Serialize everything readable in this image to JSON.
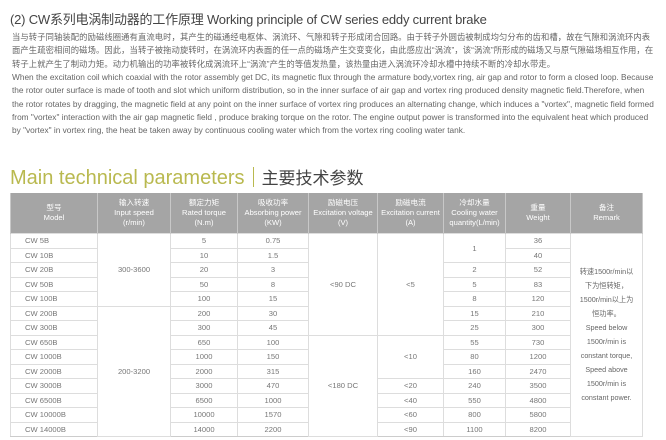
{
  "heading": "(2) CW系列电涡制动器的工作原理  Working principle of CW series eddy current brake",
  "principle_cn": "当与转子同轴装配的励磁线圈通有直流电时，其产生的磁通经电枢体、涡流环、气隙和转子形成闭合回路。由于转子外圆齿被制成均匀分布的齿和槽，故在气隙和涡流环内表面产生疏密相间的磁场。因此，当转子被拖动旋转时，在涡流环内表面的任一点的磁场产生交变变化，由此感应出“涡流”，该“涡流”所形成的磁场又与原气隙磁场相互作用，在转子上就产生了制动力矩。动力机输出的功率被转化成涡流环上“涡流”产生的等值发热量，该热量由进入涡流环冷却水槽中持续不断的冷却水带走。",
  "principle_en": "When the excitation coil which coaxial with the rotor assembly get DC, its magnetic flux through the armature body,vortex ring, air gap and rotor to form a closed loop. Because the rotor outer surface is made of tooth and slot which uniform distribution, so in the inner surface of air gap and vortex ring produced density magnetic field.Therefore, when the rotor rotates by dragging, the magnetic field at any point on the inner surface of vortex ring produces an alternating change, which induces a \"vortex\", magnetic field  formed from \"vortex\" interaction with the air gap magnetic field , produce braking torque on the rotor. The engine output power is transformed into the equivalent heat which produced  by \"vortex\" in  vortex ring, the heat be taken away by continuous cooling water which from  the vortex ring cooling water tank.",
  "section": {
    "title_en": "Main technical parameters",
    "title_cn": "主要技术参数",
    "accent": "#b9b94f"
  },
  "table": {
    "header_bg": "#a5a5a5",
    "headers": [
      {
        "cn": "型号",
        "en": "Model",
        "unit": ""
      },
      {
        "cn": "输入转速",
        "en": "Input speed",
        "unit": "(r/min)"
      },
      {
        "cn": "额定力矩",
        "en": "Rated torque",
        "unit": "(N.m)"
      },
      {
        "cn": "吸收功率",
        "en": "Absorbing power",
        "unit": "(KW)"
      },
      {
        "cn": "励磁电压",
        "en": "Excitation voltage",
        "unit": "(V)"
      },
      {
        "cn": "励磁电流",
        "en": "Excitation current",
        "unit": "(A)"
      },
      {
        "cn": "冷却水量",
        "en": "Cooling water",
        "unit": "quantity(L/min)"
      },
      {
        "cn": "重量",
        "en": "Weight",
        "unit": ""
      },
      {
        "cn": "备注",
        "en": "Remark",
        "unit": ""
      }
    ],
    "models": [
      "CW 5B",
      "CW 10B",
      "CW 20B",
      "CW 50B",
      "CW 100B",
      "CW 200B",
      "CW 300B",
      "CW 650B",
      "CW 1000B",
      "CW 2000B",
      "CW 3000B",
      "CW 6500B",
      "CW 10000B",
      "CW 14000B"
    ],
    "torque": [
      "5",
      "10",
      "20",
      "50",
      "100",
      "200",
      "300",
      "650",
      "1000",
      "2000",
      "3000",
      "6500",
      "10000",
      "14000"
    ],
    "power": [
      "0.75",
      "1.5",
      "3",
      "8",
      "15",
      "30",
      "45",
      "100",
      "150",
      "315",
      "470",
      "1000",
      "1570",
      "2200"
    ],
    "weight": [
      "36",
      "40",
      "52",
      "83",
      "120",
      "210",
      "300",
      "730",
      "1200",
      "2470",
      "3500",
      "4800",
      "5800",
      "8200"
    ],
    "speed": [
      "300-3600",
      "200-3200"
    ],
    "voltage": [
      "<90  DC",
      "<180  DC"
    ],
    "current": [
      "<5",
      "<10",
      "<20",
      "<40",
      "<60",
      "<90"
    ],
    "cooling": [
      "1",
      "2",
      "5",
      "8",
      "15",
      "25",
      "55",
      "80",
      "160",
      "240",
      "550",
      "800",
      "1100"
    ],
    "remark": [
      "转速1500r/min以",
      "下为恒转矩，",
      "1500r/min以上为",
      "恒功率。",
      "Speed below",
      "1500r/min is",
      "constant torque,",
      "Speed above",
      "1500r/min is",
      "constant power."
    ]
  }
}
